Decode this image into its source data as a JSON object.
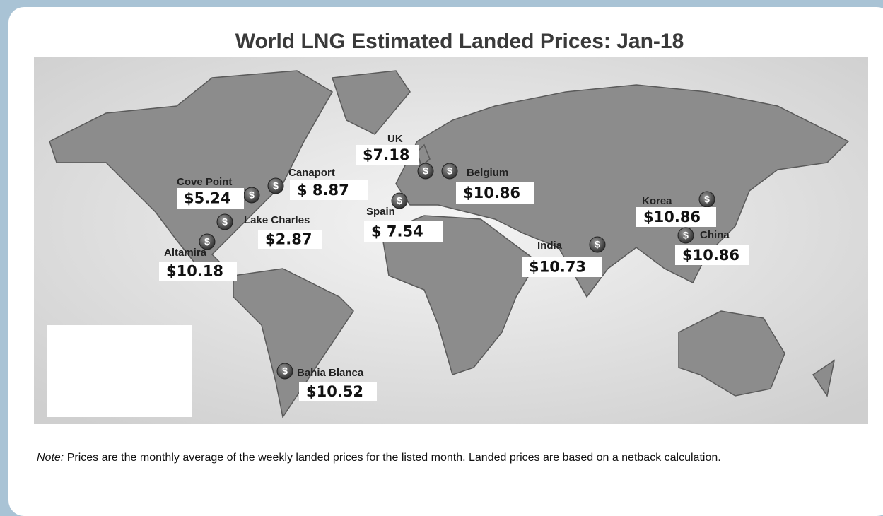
{
  "title": "World LNG Estimated Landed Prices: Jan-18",
  "locations": [
    {
      "name": "UK",
      "price": "$7.18"
    },
    {
      "name": "Belgium",
      "price": "$10.86"
    },
    {
      "name": "Cove Point",
      "price": "$5.24"
    },
    {
      "name": "Canaport",
      "price": "$ 8.87"
    },
    {
      "name": "Lake Charles",
      "price": "$2.87"
    },
    {
      "name": "Altamira",
      "price": "$10.18"
    },
    {
      "name": "Spain",
      "price": "$ 7.54"
    },
    {
      "name": "India",
      "price": "$10.73"
    },
    {
      "name": "Korea",
      "price": "$10.86"
    },
    {
      "name": "China",
      "price": "$10.86"
    },
    {
      "name": "Bahia Blanca",
      "price": "$10.52"
    }
  ],
  "note": {
    "label": "Note:",
    "text": "Prices are the monthly average of the weekly landed prices for the listed month. Landed prices are based on a netback calculation."
  }
}
